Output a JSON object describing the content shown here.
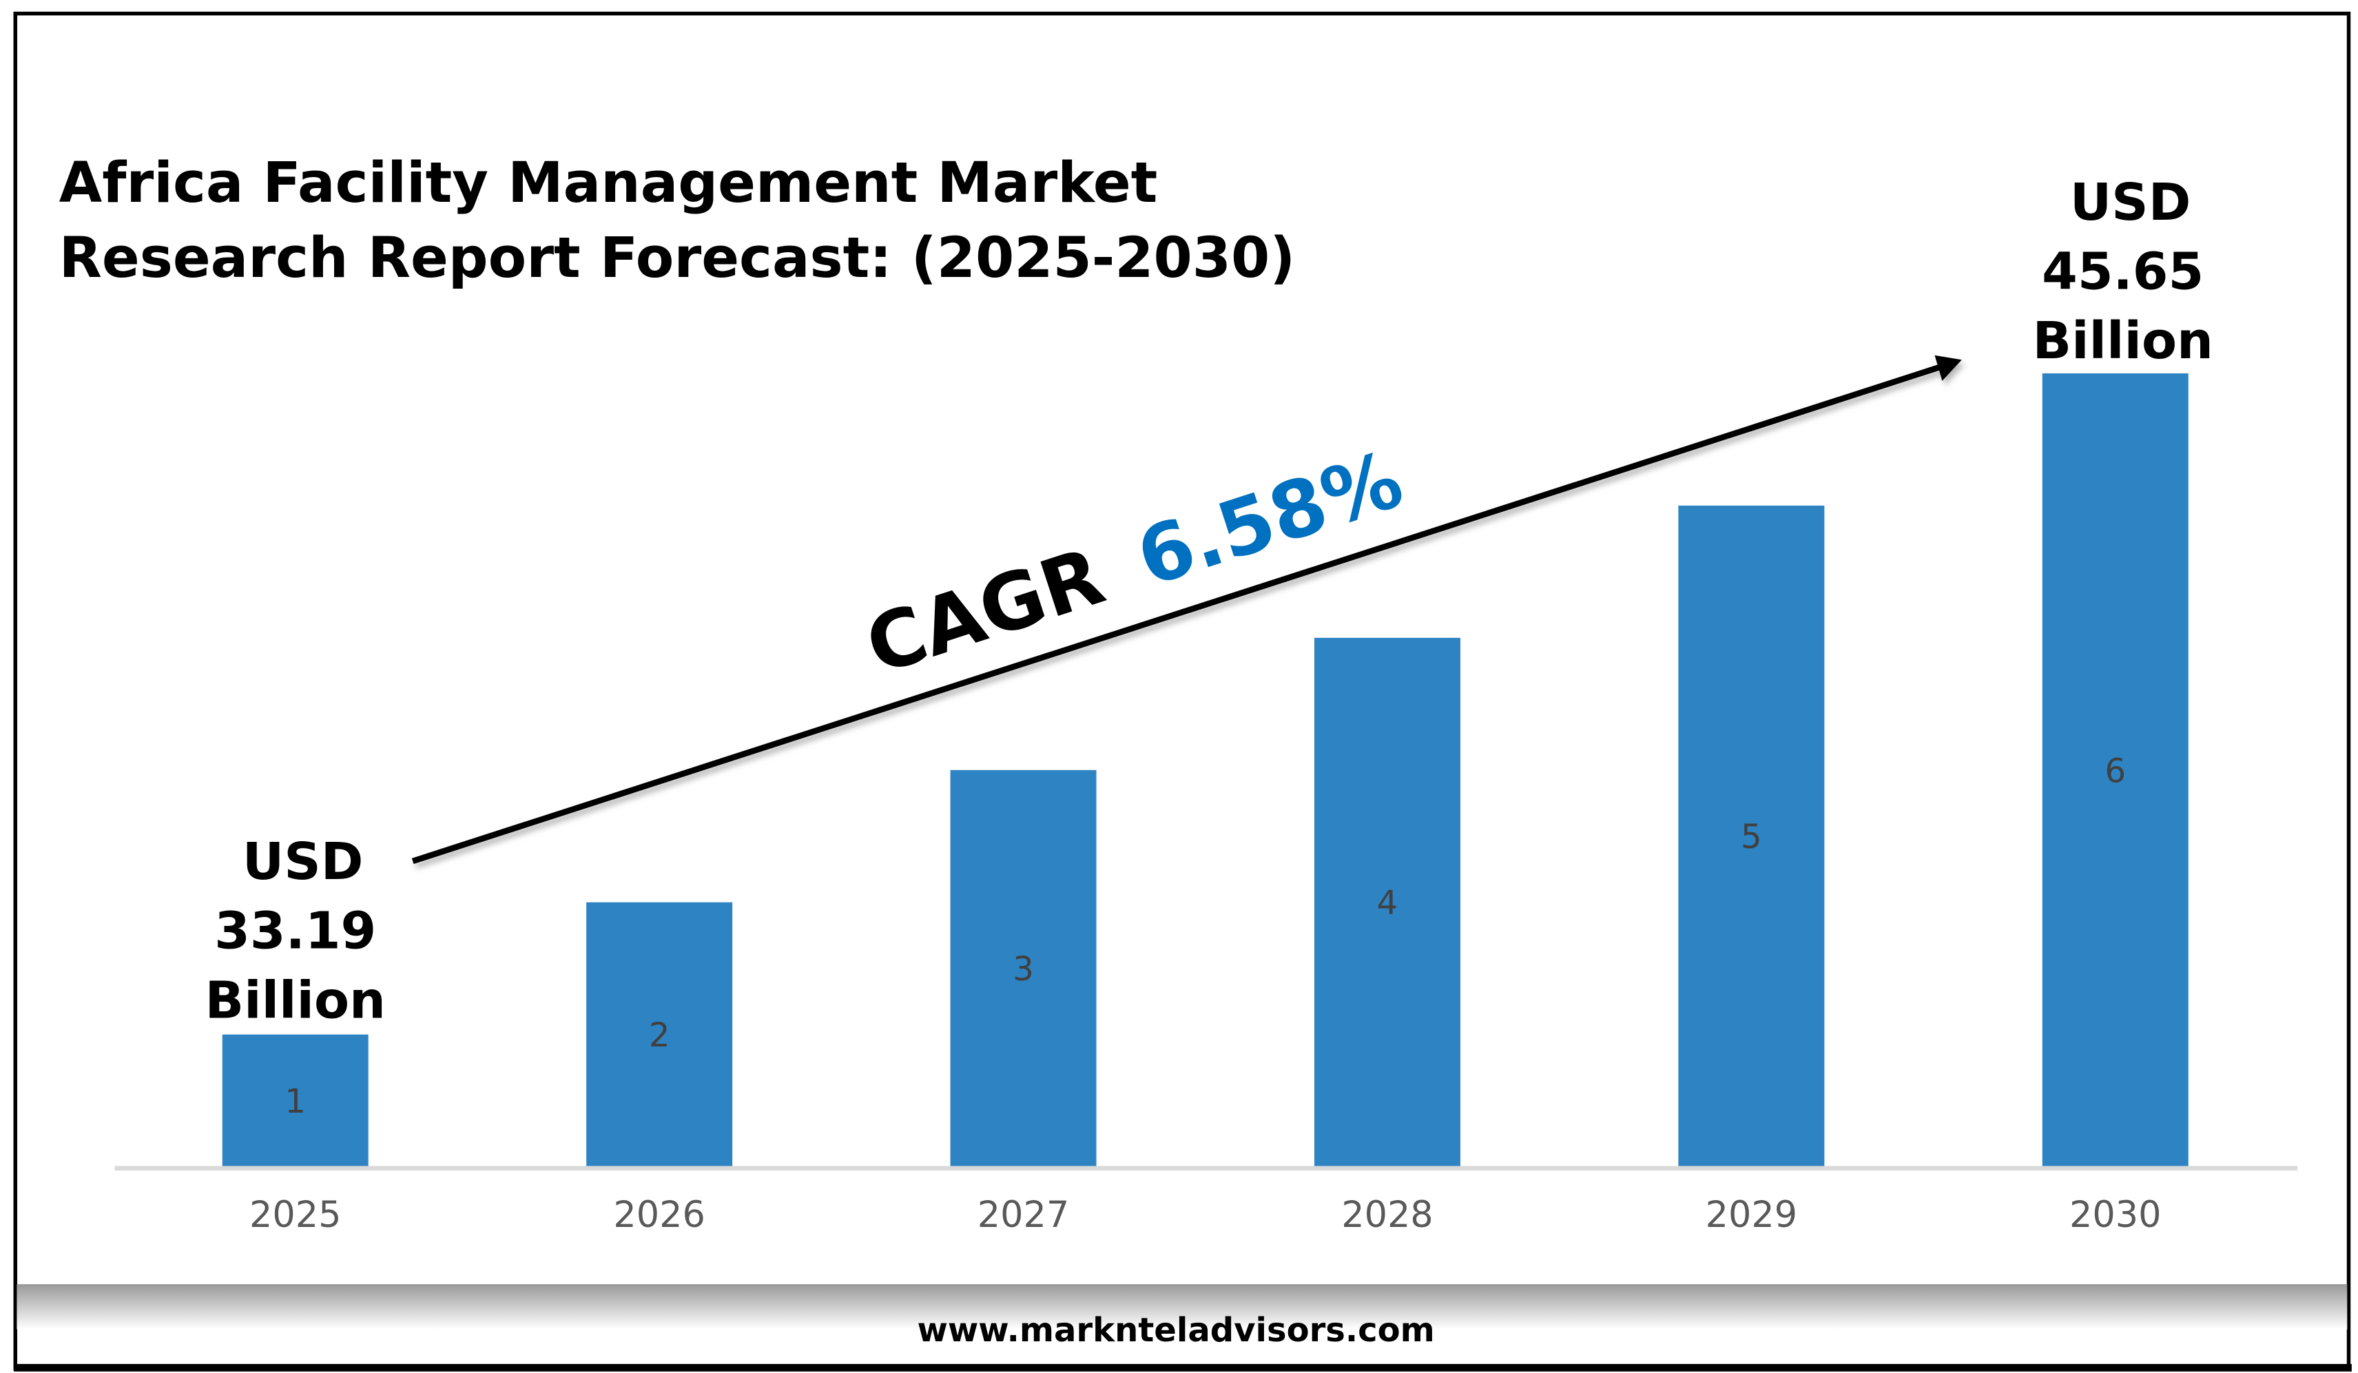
{
  "title_lines": [
    "Africa Facility Management Market",
    "Research Report Forecast: (2025-2030)"
  ],
  "start_label": [
    "USD",
    "33.19",
    "Billion"
  ],
  "end_label": [
    "USD",
    "45.65",
    "Billion"
  ],
  "cagr": {
    "prefix": "CAGR",
    "value": "6.58%"
  },
  "footer": {
    "website": "www.marknteladvisors.com"
  },
  "colors": {
    "bar": "#2E83C3",
    "cagr": "#0070C0",
    "axis": "#D9D9D9"
  },
  "chart_data": {
    "type": "bar",
    "title": "Africa Facility Management Market Research Report Forecast: (2025-2030)",
    "categories": [
      "2025",
      "2026",
      "2027",
      "2028",
      "2029",
      "2030"
    ],
    "values": [
      1,
      2,
      3,
      4,
      5,
      6
    ],
    "data_labels": [
      "1",
      "2",
      "3",
      "4",
      "5",
      "6"
    ],
    "xlabel": "",
    "ylabel": "",
    "ylim": [
      0,
      6
    ],
    "grid": false,
    "annotations": [
      "USD 33.19 Billion",
      "USD 45.65 Billion",
      "CAGR 6.58%"
    ]
  }
}
